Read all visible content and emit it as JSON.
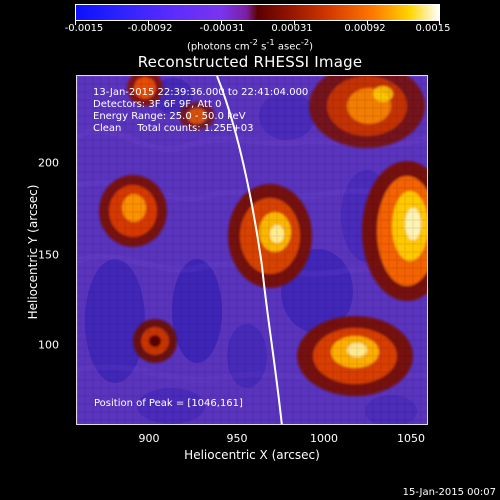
{
  "colorbar": {
    "ticks": [
      "-0.0015",
      "-0.00092",
      "-0.00031",
      "0.00031",
      "0.00092",
      "0.0015"
    ],
    "units_text": "(photons cm",
    "units_sup1": "-2",
    "units_mid": " s",
    "units_sup2": "-1",
    "units_end": " asec",
    "units_sup3": "-2",
    "units_close": ")"
  },
  "title": "Reconstructed RHESSI Image",
  "overlay": {
    "time_range": "13-Jan-2015 22:39:36.000 to 22:41:04.000",
    "detectors": "Detectors: 3F 6F 9F, Att 0",
    "energy_range": "Energy Range: 25.0 - 50.0 keV",
    "clean_text": "Clean     Total counts: 1.25E+03",
    "peak_position": "Position of Peak = [1046,161]"
  },
  "axes": {
    "x_label": "Heliocentric X (arcsec)",
    "y_label": "Heliocentric Y (arcsec)",
    "x_ticks": [
      "900",
      "950",
      "1000",
      "1050"
    ],
    "y_ticks": [
      "200",
      "150",
      "100"
    ]
  },
  "footer_timestamp": "15-Jan-2015 00:07"
}
